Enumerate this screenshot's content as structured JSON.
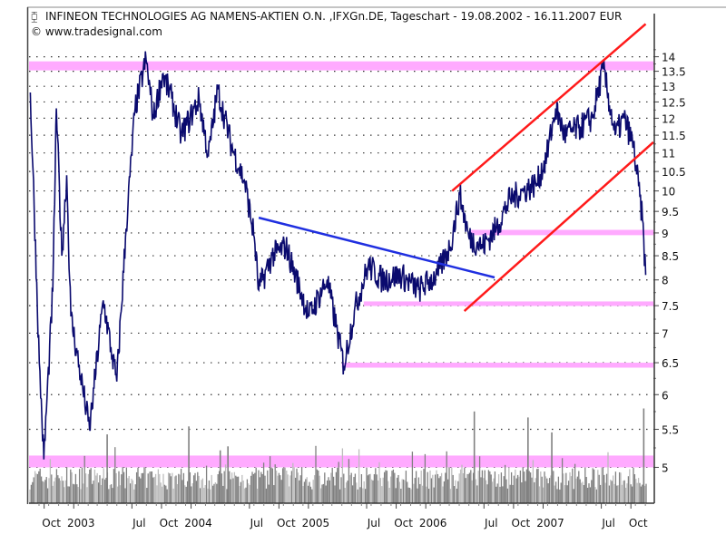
{
  "chart_data": {
    "type": "line",
    "title": "INFINEON TECHNOLOGIES AG NAMENS-AKTIEN O.N. ,IFXGn.DE, Tageschart - 19.08.2002 - 16.11.2007 EUR",
    "subtitle": "© www.tradesignal.com",
    "title_icon": "candlestick-icon",
    "y_scale": "log",
    "ylim": [
      4.57,
      15.6
    ],
    "xlim": [
      "2002-08-15",
      "2007-12-10"
    ],
    "grid": "dotted horizontal",
    "y_axis_side": "right",
    "y_ticks": [
      "5",
      "5.5",
      "6",
      "6.5",
      "7",
      "7.5",
      "8",
      "8.5",
      "9",
      "9.5",
      "10",
      "10.5",
      "11",
      "11.5",
      "12",
      "12.5",
      "13",
      "13.5",
      "14"
    ],
    "x_ticks": [
      {
        "date": "2002-10-01",
        "label": "Oct"
      },
      {
        "date": "2003-01-01",
        "label": "2003"
      },
      {
        "date": "2003-07-01",
        "label": "Jul"
      },
      {
        "date": "2003-10-01",
        "label": "Oct"
      },
      {
        "date": "2004-01-01",
        "label": "2004"
      },
      {
        "date": "2004-07-01",
        "label": "Jul"
      },
      {
        "date": "2004-10-01",
        "label": "Oct"
      },
      {
        "date": "2005-01-01",
        "label": "2005"
      },
      {
        "date": "2005-07-01",
        "label": "Jul"
      },
      {
        "date": "2005-10-01",
        "label": "Oct"
      },
      {
        "date": "2006-01-01",
        "label": "2006"
      },
      {
        "date": "2006-07-01",
        "label": "Jul"
      },
      {
        "date": "2006-10-01",
        "label": "Oct"
      },
      {
        "date": "2007-01-01",
        "label": "2007"
      },
      {
        "date": "2007-07-01",
        "label": "Jul"
      },
      {
        "date": "2007-10-01",
        "label": "Oct"
      }
    ],
    "colors": {
      "price": "#0a0a6e",
      "channel": "#ff1a1a",
      "trendline": "#1f2fe0",
      "band": "#ffaaff",
      "volume": "#808080",
      "volume_light": "#bdbdbd"
    },
    "series": [
      {
        "values": [
          [
            "2002-08-19",
            12.8
          ],
          [
            "2002-09-16",
            6.5
          ],
          [
            "2002-09-30",
            5.1
          ],
          [
            "2002-10-28",
            7.8
          ],
          [
            "2002-11-08",
            12.3
          ],
          [
            "2002-11-25",
            8.5
          ],
          [
            "2002-12-10",
            10.4
          ],
          [
            "2002-12-23",
            7.3
          ],
          [
            "2003-01-22",
            6.3
          ],
          [
            "2003-02-19",
            5.5
          ],
          [
            "2003-03-05",
            6.1
          ],
          [
            "2003-04-03",
            7.6
          ],
          [
            "2003-05-01",
            6.6
          ],
          [
            "2003-05-15",
            6.2
          ],
          [
            "2003-06-13",
            9.1
          ],
          [
            "2003-07-11",
            12.3
          ],
          [
            "2003-08-14",
            13.9
          ],
          [
            "2003-09-06",
            12.0
          ],
          [
            "2003-10-04",
            13.4
          ],
          [
            "2003-11-02",
            12.6
          ],
          [
            "2003-12-01",
            11.5
          ],
          [
            "2003-12-29",
            12.0
          ],
          [
            "2004-01-26",
            12.6
          ],
          [
            "2004-02-24",
            10.9
          ],
          [
            "2004-03-24",
            12.9
          ],
          [
            "2004-05-06",
            11.2
          ],
          [
            "2004-06-17",
            10.2
          ],
          [
            "2004-07-16",
            8.9
          ],
          [
            "2004-07-30",
            7.8
          ],
          [
            "2004-09-10",
            8.5
          ],
          [
            "2004-10-23",
            8.7
          ],
          [
            "2004-11-21",
            8.1
          ],
          [
            "2005-01-03",
            7.3
          ],
          [
            "2005-02-28",
            8.0
          ],
          [
            "2005-03-29",
            7.1
          ],
          [
            "2005-04-21",
            6.45
          ],
          [
            "2005-05-24",
            7.4
          ],
          [
            "2005-07-06",
            8.3
          ],
          [
            "2005-08-18",
            8.0
          ],
          [
            "2005-10-14",
            8.1
          ],
          [
            "2005-12-10",
            7.8
          ],
          [
            "2006-02-05",
            8.1
          ],
          [
            "2006-03-18",
            8.7
          ],
          [
            "2006-04-17",
            9.9
          ],
          [
            "2006-05-15",
            8.9
          ],
          [
            "2006-06-27",
            8.7
          ],
          [
            "2006-08-08",
            9.1
          ],
          [
            "2006-09-20",
            9.8
          ],
          [
            "2006-11-01",
            10.0
          ],
          [
            "2006-12-13",
            10.2
          ],
          [
            "2007-01-12",
            10.9
          ],
          [
            "2007-02-09",
            12.3
          ],
          [
            "2007-03-09",
            11.5
          ],
          [
            "2007-04-21",
            11.7
          ],
          [
            "2007-06-03",
            12.0
          ],
          [
            "2007-07-07",
            13.6
          ],
          [
            "2007-08-13",
            11.5
          ],
          [
            "2007-09-10",
            12.0
          ],
          [
            "2007-10-09",
            11.2
          ],
          [
            "2007-11-06",
            9.3
          ],
          [
            "2007-11-16",
            8.1
          ]
        ]
      }
    ],
    "annotations": {
      "channel_lines": [
        {
          "from": [
            "2006-03-24",
            10.0
          ],
          "to": [
            "2007-11-16",
            15.2
          ]
        },
        {
          "from": [
            "2006-05-01",
            7.4
          ],
          "to": [
            "2007-12-10",
            11.3
          ]
        }
      ],
      "trend_lines": [
        {
          "from": [
            "2004-07-30",
            9.35
          ],
          "to": [
            "2006-08-03",
            8.05
          ]
        }
      ],
      "horizontal_bands": [
        {
          "from": "2002-08-15",
          "range": [
            13.53,
            13.84
          ]
        },
        {
          "from": "2006-05-22",
          "range": [
            8.95,
            9.07
          ]
        },
        {
          "from": "2005-06-22",
          "range": [
            7.5,
            7.58
          ]
        },
        {
          "from": "2005-04-15",
          "range": [
            6.42,
            6.5
          ]
        },
        {
          "from": "2002-08-15",
          "range": [
            5.0,
            5.15
          ]
        }
      ]
    },
    "volume": {
      "relative_spikes": [
        {
          "date": "2003-04-15",
          "value": 0.69
        },
        {
          "date": "2003-12-25",
          "value": 0.77
        },
        {
          "date": "2004-04-01",
          "value": 0.53
        },
        {
          "date": "2004-04-25",
          "value": 0.57
        },
        {
          "date": "2006-06-01",
          "value": 0.92
        },
        {
          "date": "2006-11-15",
          "value": 0.86
        },
        {
          "date": "2007-01-28",
          "value": 0.71
        },
        {
          "date": "2007-11-10",
          "value": 0.95
        }
      ]
    }
  }
}
